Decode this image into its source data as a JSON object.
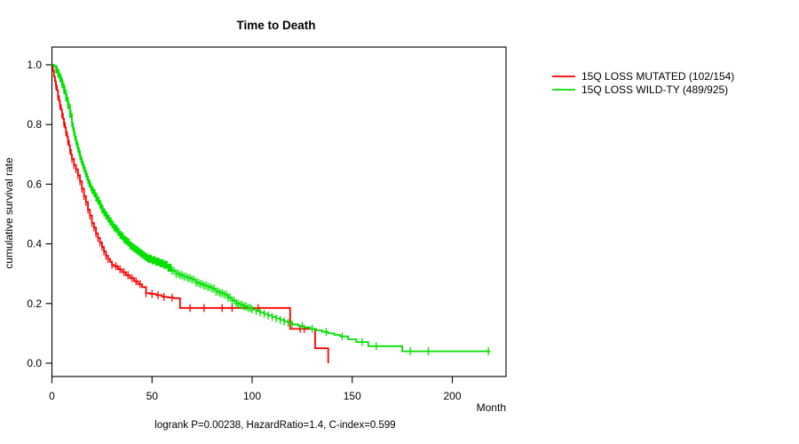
{
  "chart_data": {
    "type": "line",
    "subtype": "kaplan-meier-step-survival",
    "title": "Time to Death",
    "xlabel": "Month",
    "ylabel": "cumulative survival rate",
    "annotation": "logrank P=0.00238, HazardRatio=1.4, C-index=0.599",
    "grid": "off",
    "legend_position": "right-outside-top",
    "x_axis": {
      "range": [
        0,
        220
      ],
      "ticks": [
        0,
        50,
        100,
        150,
        200
      ]
    },
    "y_axis": {
      "range": [
        0.0,
        1.0
      ],
      "ticks": [
        0.0,
        0.2,
        0.4,
        0.6,
        0.8,
        1.0
      ]
    },
    "series": [
      {
        "id": "mutated",
        "label": "15Q LOSS MUTATED (102/154)",
        "color": "#FF0000",
        "n_total": 154,
        "n_events": 102,
        "points": [
          [
            0,
            1.0
          ],
          [
            0.5,
            0.98
          ],
          [
            1,
            0.96
          ],
          [
            1.5,
            0.945
          ],
          [
            2,
            0.93
          ],
          [
            2.5,
            0.915
          ],
          [
            3,
            0.895
          ],
          [
            3.5,
            0.88
          ],
          [
            4,
            0.865
          ],
          [
            4.5,
            0.85
          ],
          [
            5,
            0.835
          ],
          [
            5.5,
            0.82
          ],
          [
            6,
            0.805
          ],
          [
            6.5,
            0.79
          ],
          [
            7,
            0.775
          ],
          [
            7.5,
            0.76
          ],
          [
            8,
            0.745
          ],
          [
            8.5,
            0.73
          ],
          [
            9,
            0.715
          ],
          [
            9.5,
            0.7
          ],
          [
            10,
            0.685
          ],
          [
            11,
            0.665
          ],
          [
            12,
            0.65
          ],
          [
            13,
            0.63
          ],
          [
            14,
            0.61
          ],
          [
            15,
            0.585
          ],
          [
            16,
            0.56
          ],
          [
            17,
            0.54
          ],
          [
            18,
            0.515
          ],
          [
            19,
            0.495
          ],
          [
            20,
            0.47
          ],
          [
            21,
            0.455
          ],
          [
            22,
            0.435
          ],
          [
            23,
            0.42
          ],
          [
            24,
            0.405
          ],
          [
            25,
            0.39
          ],
          [
            26,
            0.375
          ],
          [
            27,
            0.36
          ],
          [
            28,
            0.35
          ],
          [
            29,
            0.34
          ],
          [
            30,
            0.33
          ],
          [
            31,
            0.325
          ],
          [
            33,
            0.315
          ],
          [
            35,
            0.305
          ],
          [
            37,
            0.295
          ],
          [
            39,
            0.285
          ],
          [
            41,
            0.275
          ],
          [
            43,
            0.265
          ],
          [
            45,
            0.255
          ],
          [
            47,
            0.235
          ],
          [
            49,
            0.232
          ],
          [
            52,
            0.228
          ],
          [
            55,
            0.222
          ],
          [
            58,
            0.22
          ],
          [
            61,
            0.218
          ],
          [
            64,
            0.185
          ],
          [
            119,
            0.115
          ],
          [
            131.5,
            0.05
          ],
          [
            138,
            0.0
          ]
        ],
        "censor_marks": [
          2,
          3,
          4,
          5,
          6,
          7,
          8,
          9,
          10,
          11,
          12,
          13,
          14,
          15,
          16,
          17,
          18,
          19,
          20,
          21,
          22,
          23,
          24,
          25,
          26,
          27,
          28,
          30,
          32,
          34,
          36,
          38,
          40,
          42,
          44,
          47,
          50,
          53,
          56,
          60,
          69,
          76,
          85,
          90,
          99,
          103,
          124,
          126
        ]
      },
      {
        "id": "wildtype",
        "label": "15Q LOSS WILD-TY (489/925)",
        "color": "#00E000",
        "n_total": 925,
        "n_events": 489,
        "points": [
          [
            0,
            1.0
          ],
          [
            1,
            0.995
          ],
          [
            2,
            0.985
          ],
          [
            3,
            0.97
          ],
          [
            4,
            0.955
          ],
          [
            5,
            0.935
          ],
          [
            6,
            0.915
          ],
          [
            7,
            0.89
          ],
          [
            8,
            0.865
          ],
          [
            9,
            0.835
          ],
          [
            10,
            0.805
          ],
          [
            10.5,
            0.79
          ],
          [
            11,
            0.775
          ],
          [
            11.5,
            0.76
          ],
          [
            12,
            0.745
          ],
          [
            12.5,
            0.735
          ],
          [
            13,
            0.72
          ],
          [
            13.5,
            0.71
          ],
          [
            14,
            0.695
          ],
          [
            14.5,
            0.685
          ],
          [
            15,
            0.675
          ],
          [
            15.5,
            0.665
          ],
          [
            16,
            0.655
          ],
          [
            16.5,
            0.645
          ],
          [
            17,
            0.635
          ],
          [
            17.5,
            0.625
          ],
          [
            18,
            0.615
          ],
          [
            18.5,
            0.605
          ],
          [
            19,
            0.6
          ],
          [
            19.5,
            0.59
          ],
          [
            20,
            0.58
          ],
          [
            21,
            0.57
          ],
          [
            22,
            0.555
          ],
          [
            23,
            0.545
          ],
          [
            24,
            0.53
          ],
          [
            25,
            0.515
          ],
          [
            26,
            0.505
          ],
          [
            27,
            0.495
          ],
          [
            28,
            0.485
          ],
          [
            29,
            0.475
          ],
          [
            30,
            0.465
          ],
          [
            31,
            0.455
          ],
          [
            32,
            0.45
          ],
          [
            33,
            0.44
          ],
          [
            34,
            0.43
          ],
          [
            35,
            0.425
          ],
          [
            36,
            0.415
          ],
          [
            37,
            0.41
          ],
          [
            38,
            0.405
          ],
          [
            39,
            0.395
          ],
          [
            40,
            0.39
          ],
          [
            41,
            0.385
          ],
          [
            42,
            0.38
          ],
          [
            43,
            0.375
          ],
          [
            44,
            0.37
          ],
          [
            45,
            0.365
          ],
          [
            46,
            0.36
          ],
          [
            47,
            0.355
          ],
          [
            48,
            0.35
          ],
          [
            50,
            0.345
          ],
          [
            52,
            0.34
          ],
          [
            54,
            0.335
          ],
          [
            56,
            0.33
          ],
          [
            58,
            0.32
          ],
          [
            60,
            0.31
          ],
          [
            62,
            0.3
          ],
          [
            64,
            0.295
          ],
          [
            66,
            0.29
          ],
          [
            68,
            0.285
          ],
          [
            70,
            0.28
          ],
          [
            72,
            0.27
          ],
          [
            74,
            0.265
          ],
          [
            76,
            0.26
          ],
          [
            78,
            0.255
          ],
          [
            80,
            0.25
          ],
          [
            82,
            0.24
          ],
          [
            84,
            0.235
          ],
          [
            86,
            0.23
          ],
          [
            88,
            0.22
          ],
          [
            90,
            0.21
          ],
          [
            92,
            0.2
          ],
          [
            94,
            0.195
          ],
          [
            96,
            0.19
          ],
          [
            98,
            0.185
          ],
          [
            100,
            0.18
          ],
          [
            102,
            0.175
          ],
          [
            104,
            0.17
          ],
          [
            106,
            0.165
          ],
          [
            108,
            0.16
          ],
          [
            110,
            0.155
          ],
          [
            112,
            0.15
          ],
          [
            114,
            0.145
          ],
          [
            116,
            0.14
          ],
          [
            118,
            0.135
          ],
          [
            120,
            0.13
          ],
          [
            123,
            0.125
          ],
          [
            126,
            0.12
          ],
          [
            129,
            0.115
          ],
          [
            132,
            0.11
          ],
          [
            135,
            0.105
          ],
          [
            138,
            0.1
          ],
          [
            141,
            0.095
          ],
          [
            144,
            0.09
          ],
          [
            148,
            0.08
          ],
          [
            152,
            0.071
          ],
          [
            158,
            0.057
          ],
          [
            175,
            0.04
          ],
          [
            219,
            0.04
          ]
        ],
        "censor_ranges": [
          [
            2,
            60,
            0.5
          ],
          [
            61,
            100,
            1
          ],
          [
            102,
            120,
            2
          ]
        ],
        "censor_marks": [
          125,
          130,
          137,
          145,
          155,
          162,
          179,
          188,
          218
        ]
      }
    ]
  }
}
